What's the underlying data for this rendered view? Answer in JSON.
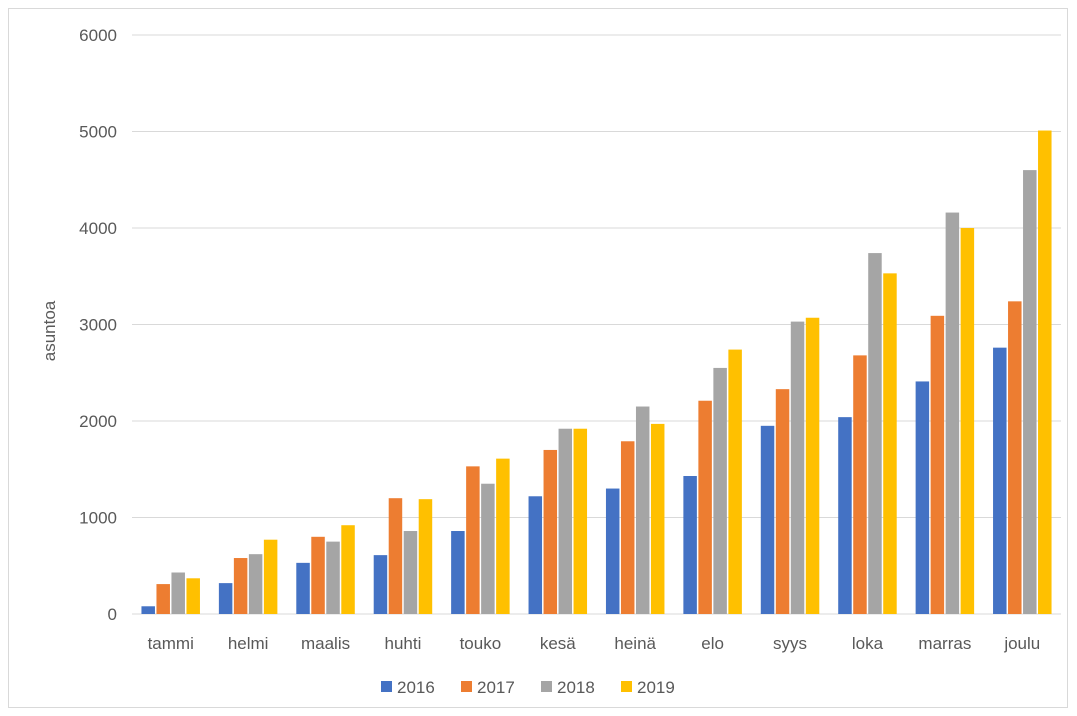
{
  "chart_data": {
    "type": "bar",
    "title": "",
    "xlabel": "",
    "ylabel": "asuntoa",
    "ylim": [
      0,
      6000
    ],
    "yticks": [
      0,
      1000,
      2000,
      3000,
      4000,
      5000,
      6000
    ],
    "grid": true,
    "legend_position": "bottom",
    "categories": [
      "tammi",
      "helmi",
      "maalis",
      "huhti",
      "touko",
      "kesä",
      "heinä",
      "elo",
      "syys",
      "loka",
      "marras",
      "joulu"
    ],
    "series": [
      {
        "name": "2016",
        "color": "#4472c4",
        "values": [
          80,
          320,
          530,
          610,
          860,
          1220,
          1300,
          1430,
          1950,
          2040,
          2410,
          2760
        ]
      },
      {
        "name": "2017",
        "color": "#ed7d31",
        "values": [
          310,
          580,
          800,
          1200,
          1530,
          1700,
          1790,
          2210,
          2330,
          2680,
          3090,
          3240
        ]
      },
      {
        "name": "2018",
        "color": "#a5a5a5",
        "values": [
          430,
          620,
          750,
          860,
          1350,
          1920,
          2150,
          2550,
          3030,
          3740,
          4160,
          4600
        ]
      },
      {
        "name": "2019",
        "color": "#ffc000",
        "values": [
          370,
          770,
          920,
          1190,
          1610,
          1920,
          1970,
          2740,
          3070,
          3530,
          4000,
          5010
        ]
      }
    ]
  }
}
